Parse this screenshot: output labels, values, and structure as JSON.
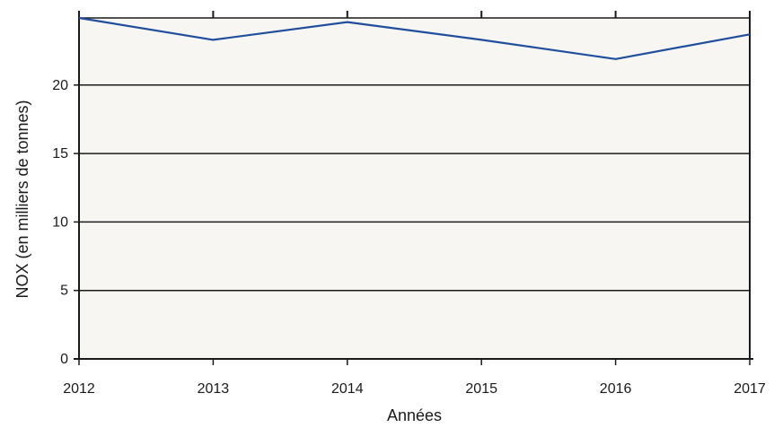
{
  "chart_data": {
    "type": "line",
    "title": "",
    "xlabel": "Années",
    "ylabel": "NOX (en milliers de tonnes)",
    "x": [
      2012,
      2013,
      2014,
      2015,
      2016,
      2017
    ],
    "x_tick_labels": [
      "2012",
      "2013",
      "2014",
      "2015",
      "2016",
      "2017"
    ],
    "y_ticks": [
      0,
      5,
      10,
      15,
      20
    ],
    "y_tick_labels": [
      "0",
      "5",
      "10",
      "15",
      "20"
    ],
    "xlim": [
      2012,
      2017
    ],
    "ylim": [
      0,
      24.9
    ],
    "grid": "horizontal",
    "legend": "none",
    "series": [
      {
        "values": [
          24.9,
          23.3,
          24.6,
          23.3,
          21.9,
          23.7
        ],
        "color": "#1f4e9c"
      }
    ],
    "colors": {
      "plot_background": "#f8f6f3",
      "gridline": "#1a1a1a",
      "axis": "#1a1a1a",
      "text": "#1a1a1a"
    }
  }
}
